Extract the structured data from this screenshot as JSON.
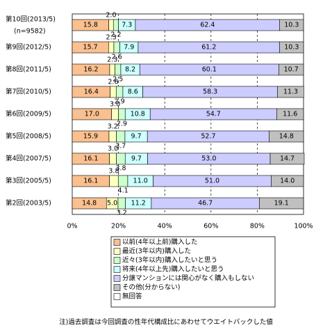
{
  "chart_data": {
    "type": "stacked-bar-horizontal",
    "categories": [
      "第10回(2013/5)",
      "第9回(2012/5)",
      "第8回(2011/5)",
      "第7回(2010/5)",
      "第6回(2009/5)",
      "第5回(2008/5)",
      "第4回(2007/5)",
      "第3回(2005/5)",
      "第2回(2003/5)"
    ],
    "category_note": "(n=9582)",
    "series": [
      {
        "name": "以前(4年以上前)購入した",
        "color": "#fac090",
        "values": [
          15.8,
          15.7,
          16.2,
          16.4,
          17.0,
          15.9,
          16.1,
          16.1,
          14.8
        ],
        "value_labels": [
          "15.8",
          "15.7",
          "16.2",
          "16.4",
          "17.0",
          "15.9",
          "16.1",
          "16.1",
          "14.8"
        ]
      },
      {
        "name": "最近(3年以内)購入した",
        "color": "#ffffc0",
        "values": [
          2.0,
          2.3,
          2.3,
          2.6,
          3.0,
          3.2,
          3.0,
          3.8,
          5.0
        ],
        "value_labels": [
          "2.0",
          "2.3",
          "2.3",
          "2.6",
          "3.0",
          "3.2",
          "3.0",
          "3.8",
          "5.0"
        ]
      },
      {
        "name": "近々(3年以内)購入したいと思う",
        "color": "#ccffcc",
        "values": [
          2.2,
          2.6,
          2.5,
          2.9,
          2.9,
          3.7,
          3.8,
          4.1,
          3.2
        ],
        "value_labels": [
          "2.2",
          "2.6",
          "2.5",
          "2.9",
          "2.9",
          "3.7",
          "3.8",
          "4.1",
          "3.2"
        ]
      },
      {
        "name": "将来(4年以上先)購入したいと思う",
        "color": "#ccffff",
        "values": [
          7.3,
          7.9,
          8.2,
          8.6,
          10.8,
          9.7,
          9.7,
          11.0,
          11.2
        ],
        "value_labels": [
          "7.3",
          "7.9",
          "8.2",
          "8.6",
          "10.8",
          "9.7",
          "9.7",
          "11.0",
          "11.2"
        ]
      },
      {
        "name": "分譲マンションには関心がなく購入もしない",
        "color": "#ccccff",
        "values": [
          62.4,
          61.2,
          60.1,
          58.3,
          54.7,
          52.7,
          53.0,
          51.0,
          46.7
        ],
        "value_labels": [
          "62.4",
          "61.2",
          "60.1",
          "58.3",
          "54.7",
          "52.7",
          "53.0",
          "51.0",
          "46.7"
        ]
      },
      {
        "name": "その他(分からない)",
        "color": "#c0c0c0",
        "values": [
          10.3,
          10.3,
          10.7,
          11.3,
          11.6,
          14.8,
          14.7,
          14.0,
          19.1
        ],
        "value_labels": [
          "10.3",
          "10.3",
          "10.7",
          "11.3",
          "11.6",
          "14.8",
          "14.7",
          "14.0",
          "19.1"
        ]
      },
      {
        "name": "無回答",
        "color": "#ffffff",
        "values": [
          0,
          0,
          0,
          0,
          0,
          0,
          0,
          0,
          0
        ]
      }
    ],
    "xlim": [
      0,
      100
    ],
    "xticks": [
      {
        "value": 0,
        "label": "0%"
      },
      {
        "value": 20,
        "label": "20%"
      },
      {
        "value": 40,
        "label": "40%"
      },
      {
        "value": 60,
        "label": "60%"
      },
      {
        "value": 80,
        "label": "80%"
      },
      {
        "value": 100,
        "label": "100%"
      }
    ],
    "grid": true,
    "legend": "bottom",
    "note": "注)過去調査は今回調査の性年代構成比にあわせてウエイトバックした値"
  }
}
